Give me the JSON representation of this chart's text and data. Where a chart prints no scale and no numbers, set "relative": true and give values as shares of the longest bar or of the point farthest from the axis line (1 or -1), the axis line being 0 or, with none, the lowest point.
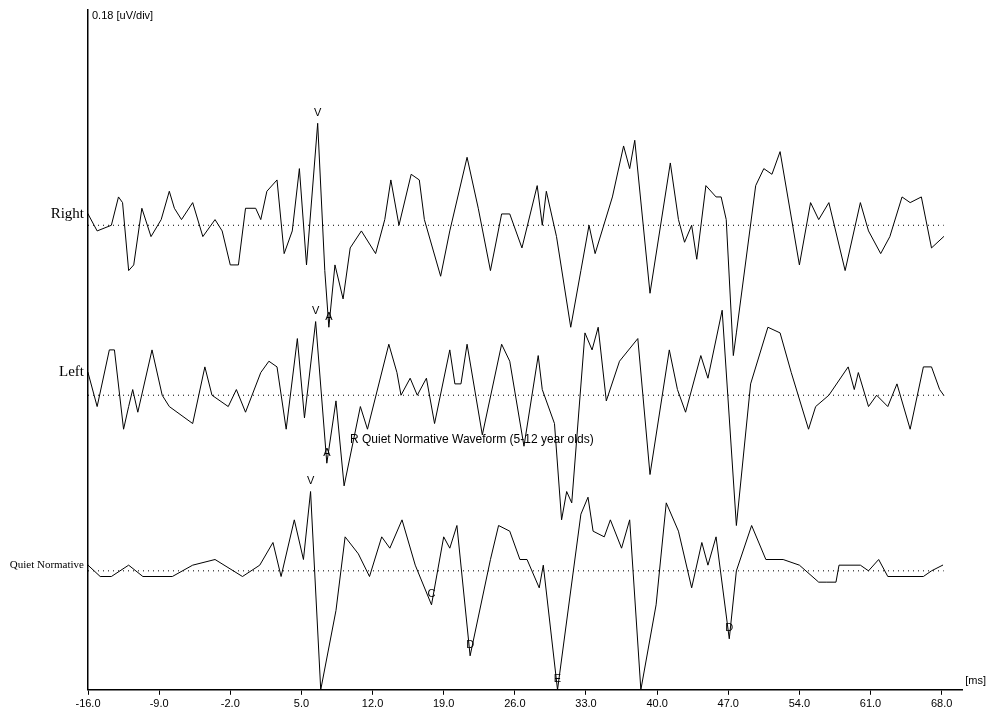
{
  "chart_data": {
    "type": "line",
    "relative": true,
    "xlabel": "[ms]",
    "xlim": [
      -16,
      70
    ],
    "xticks": [
      {
        "value": -16,
        "label": "-16.0"
      },
      {
        "value": -9,
        "label": "-9.0"
      },
      {
        "value": -2,
        "label": "-2.0"
      },
      {
        "value": 5,
        "label": "5.0"
      },
      {
        "value": 12,
        "label": "12.0"
      },
      {
        "value": 19,
        "label": "19.0"
      },
      {
        "value": 26,
        "label": "26.0"
      },
      {
        "value": 33,
        "label": "33.0"
      },
      {
        "value": 40,
        "label": "40.0"
      },
      {
        "value": 47,
        "label": "47.0"
      },
      {
        "value": 54,
        "label": "54.0"
      },
      {
        "value": 61,
        "label": "61.0"
      },
      {
        "value": 68,
        "label": "68.0"
      }
    ],
    "tick_labels": "x",
    "grid": false,
    "legend": false,
    "marker": "none",
    "line_style": "solid",
    "series": [
      {
        "name": "Right",
        "color": "#000000",
        "x": [
          -16.0,
          -15.1,
          -13.7,
          -13.0,
          -12.6,
          -12.0,
          -11.5,
          -10.7,
          -9.8,
          -8.8,
          -8.0,
          -7.5,
          -6.8,
          -5.7,
          -4.7,
          -3.5,
          -2.8,
          -2.0,
          -1.2,
          -0.5,
          0.5,
          1.0,
          1.6,
          2.6,
          3.3,
          4.1,
          4.8,
          5.5,
          6.6,
          7.3,
          7.7,
          8.3,
          9.1,
          9.8,
          10.9,
          12.3,
          13.2,
          13.8,
          14.6,
          15.8,
          16.6,
          17.1,
          18.7,
          19.6,
          21.3,
          22.4,
          23.6,
          24.7,
          25.5,
          26.7,
          28.2,
          28.7,
          29.1,
          30.1,
          31.5,
          32.5,
          33.3,
          33.9,
          35.6,
          36.7,
          37.3,
          37.8,
          39.3,
          41.3,
          42.1,
          42.7,
          43.4,
          43.9,
          44.8,
          45.8,
          46.3,
          46.8,
          47.5,
          47.8,
          49.7,
          50.5,
          51.3,
          52.1,
          54.0,
          55.1,
          55.9,
          56.9,
          58.5,
          60.0,
          60.8,
          62.0,
          62.9,
          64.1,
          64.9,
          66.0,
          67.0,
          68.2
        ],
        "values": [
          0.84,
          0.81,
          0.82,
          0.87,
          0.86,
          0.74,
          0.75,
          0.85,
          0.8,
          0.83,
          0.88,
          0.85,
          0.83,
          0.86,
          0.8,
          0.83,
          0.81,
          0.75,
          0.75,
          0.85,
          0.85,
          0.83,
          0.88,
          0.9,
          0.77,
          0.81,
          0.92,
          0.75,
          1.0,
          0.74,
          0.64,
          0.75,
          0.69,
          0.78,
          0.81,
          0.77,
          0.83,
          0.9,
          0.82,
          0.91,
          0.9,
          0.83,
          0.73,
          0.81,
          0.94,
          0.85,
          0.74,
          0.84,
          0.84,
          0.78,
          0.89,
          0.82,
          0.88,
          0.8,
          0.64,
          0.74,
          0.82,
          0.77,
          0.87,
          0.96,
          0.92,
          0.97,
          0.7,
          0.93,
          0.83,
          0.79,
          0.82,
          0.76,
          0.89,
          0.87,
          0.87,
          0.83,
          0.59,
          0.63,
          0.89,
          0.92,
          0.91,
          0.95,
          0.75,
          0.86,
          0.83,
          0.86,
          0.74,
          0.86,
          0.81,
          0.77,
          0.8,
          0.87,
          0.86,
          0.87,
          0.78,
          0.8
        ]
      },
      {
        "name": "Left",
        "color": "#000000",
        "x": [
          -16.0,
          -15.1,
          -13.9,
          -13.4,
          -12.5,
          -12.0,
          -11.6,
          -11.1,
          -9.7,
          -8.7,
          -8.0,
          -5.7,
          -4.5,
          -3.8,
          -2.2,
          -1.4,
          -0.5,
          1.0,
          1.8,
          2.6,
          3.5,
          4.6,
          5.3,
          6.4,
          7.5,
          8.4,
          9.2,
          10.8,
          11.5,
          13.6,
          14.4,
          14.8,
          15.7,
          16.4,
          17.3,
          18.1,
          19.6,
          20.1,
          20.7,
          21.3,
          22.8,
          24.7,
          25.5,
          26.9,
          28.3,
          28.7,
          29.9,
          30.6,
          31.1,
          31.6,
          32.9,
          33.6,
          34.2,
          35.0,
          36.3,
          38.1,
          39.3,
          41.2,
          42.0,
          42.8,
          44.3,
          45.0,
          46.4,
          47.8,
          49.2,
          50.9,
          52.1,
          53.2,
          54.9,
          55.6,
          56.9,
          58.8,
          59.4,
          59.8,
          60.8,
          61.6,
          62.7,
          63.6,
          64.9,
          66.2,
          67.0,
          67.8,
          68.2
        ],
        "values": [
          0.56,
          0.5,
          0.6,
          0.6,
          0.46,
          0.5,
          0.53,
          0.49,
          0.6,
          0.52,
          0.5,
          0.47,
          0.57,
          0.52,
          0.5,
          0.53,
          0.49,
          0.56,
          0.58,
          0.57,
          0.46,
          0.62,
          0.48,
          0.65,
          0.4,
          0.51,
          0.36,
          0.5,
          0.46,
          0.61,
          0.56,
          0.52,
          0.55,
          0.52,
          0.55,
          0.47,
          0.6,
          0.54,
          0.54,
          0.61,
          0.45,
          0.61,
          0.58,
          0.43,
          0.59,
          0.53,
          0.47,
          0.3,
          0.35,
          0.33,
          0.63,
          0.6,
          0.64,
          0.51,
          0.58,
          0.62,
          0.38,
          0.6,
          0.53,
          0.49,
          0.59,
          0.55,
          0.67,
          0.29,
          0.54,
          0.64,
          0.63,
          0.56,
          0.46,
          0.5,
          0.52,
          0.57,
          0.53,
          0.56,
          0.5,
          0.52,
          0.5,
          0.54,
          0.46,
          0.57,
          0.57,
          0.53,
          0.52
        ]
      },
      {
        "name": "Quiet Normative",
        "color": "#000000",
        "x": [
          -16.0,
          -14.8,
          -13.7,
          -12.0,
          -10.6,
          -7.7,
          -5.7,
          -3.5,
          -0.8,
          0.9,
          2.2,
          3.0,
          4.3,
          5.2,
          5.9,
          6.9,
          8.4,
          9.3,
          10.6,
          11.7,
          12.9,
          13.7,
          14.9,
          16.2,
          17.8,
          19.0,
          19.6,
          20.3,
          21.6,
          23.6,
          24.4,
          25.5,
          26.5,
          27.2,
          28.4,
          28.8,
          30.2,
          32.5,
          33.2,
          33.7,
          34.8,
          35.4,
          36.5,
          37.3,
          38.4,
          39.9,
          40.9,
          42.1,
          43.4,
          44.4,
          45.0,
          45.8,
          47.1,
          47.8,
          49.3,
          50.7,
          52.4,
          54.0,
          55.9,
          56.7,
          57.6,
          57.9,
          60.0,
          60.8,
          61.8,
          62.7,
          66.2,
          67.0,
          68.1
        ],
        "values": [
          0.22,
          0.2,
          0.2,
          0.22,
          0.2,
          0.2,
          0.22,
          0.23,
          0.2,
          0.22,
          0.26,
          0.2,
          0.3,
          0.23,
          0.35,
          0,
          0.14,
          0.27,
          0.24,
          0.2,
          0.27,
          0.25,
          0.3,
          0.22,
          0.15,
          0.27,
          0.25,
          0.29,
          0.06,
          0.23,
          0.29,
          0.28,
          0.23,
          0.23,
          0.18,
          0.22,
          0,
          0.31,
          0.34,
          0.28,
          0.27,
          0.3,
          0.25,
          0.3,
          0,
          0.15,
          0.33,
          0.28,
          0.18,
          0.26,
          0.22,
          0.27,
          0.09,
          0.21,
          0.29,
          0.23,
          0.23,
          0.22,
          0.19,
          0.19,
          0.19,
          0.22,
          0.22,
          0.21,
          0.23,
          0.2,
          0.2,
          0.21,
          0.22
        ]
      }
    ],
    "ref_lines": [
      {
        "axis": "y",
        "value": 0.82,
        "line_style": "dotted",
        "color": "#000000"
      },
      {
        "axis": "y",
        "value": 0.52,
        "line_style": "dotted",
        "color": "#000000"
      },
      {
        "axis": "y",
        "value": 0.21,
        "line_style": "dotted",
        "color": "#000000"
      }
    ],
    "annotations": [
      "0.18 [uV/div]",
      {
        "text": "V",
        "x": 6.6,
        "y": 1.0
      },
      {
        "text": "A",
        "x": 7.7,
        "y": 0.64
      },
      {
        "text": "V",
        "x": 6.4,
        "y": 0.65
      },
      {
        "text": "A",
        "x": 7.5,
        "y": 0.4
      },
      {
        "text": "V",
        "x": 5.9,
        "y": 0.35
      },
      {
        "text": "C",
        "x": 17.8,
        "y": 0.15
      },
      {
        "text": "D",
        "x": 21.6,
        "y": 0.06
      },
      {
        "text": "E",
        "x": 30.2,
        "y": 0
      },
      {
        "text": "D",
        "x": 47.1,
        "y": 0.09
      },
      "R Quiet Normative Waveform (5-12 year olds)"
    ]
  }
}
